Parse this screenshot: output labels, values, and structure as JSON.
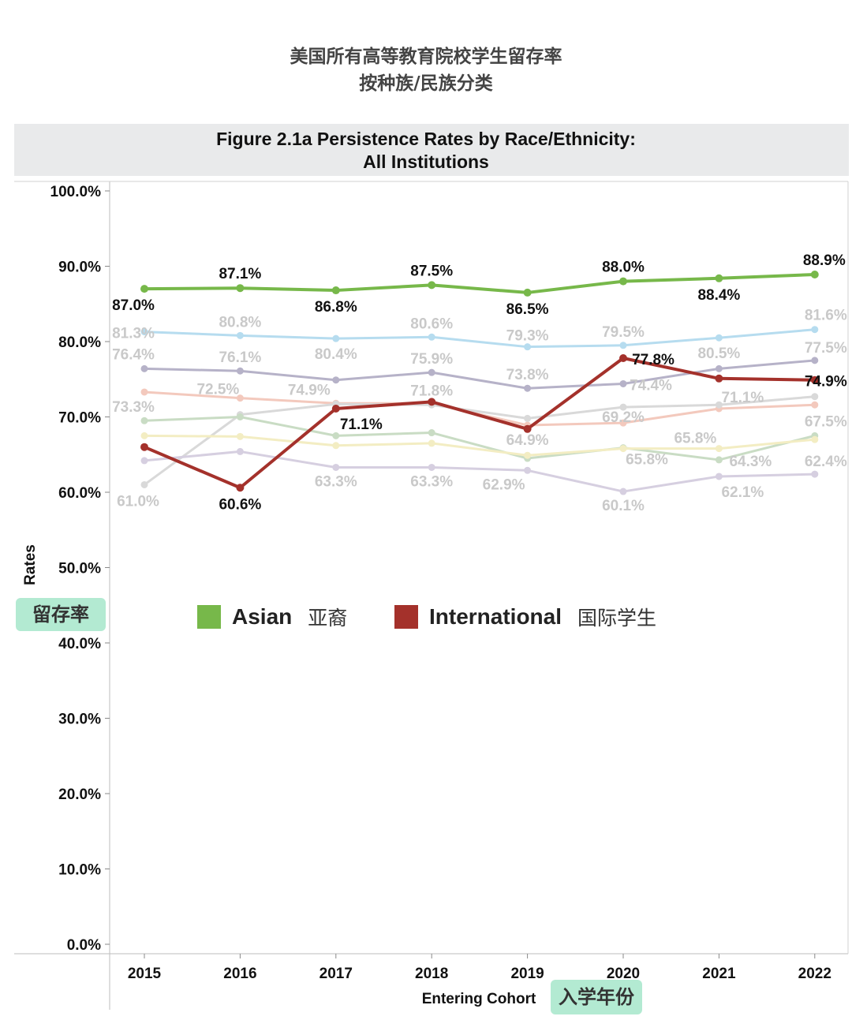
{
  "header": {
    "zh_title_line1": "美国所有高等教育院校学生留存率",
    "zh_title_line2": "按种族/民族分类",
    "figure_title_line1": "Figure 2.1a Persistence Rates by Race/Ethnicity:",
    "figure_title_line2": "All Institutions"
  },
  "annotations": {
    "y_axis_zh": "留存率",
    "x_axis_zh": "入学年份"
  },
  "legend": [
    {
      "label": "Asian",
      "zh": "亚裔",
      "color": "#77b84a"
    },
    {
      "label": "International",
      "zh": "国际学生",
      "color": "#a4312b"
    }
  ],
  "chart_data": {
    "type": "line",
    "title": "Figure 2.1a Persistence Rates by Race/Ethnicity: All Institutions",
    "xlabel": "Entering Cohort",
    "ylabel": "Rates",
    "ylim": [
      0,
      100
    ],
    "y_ticks": [
      "0.0%",
      "10.0%",
      "20.0%",
      "30.0%",
      "40.0%",
      "50.0%",
      "60.0%",
      "70.0%",
      "80.0%",
      "90.0%",
      "100.0%"
    ],
    "categories": [
      "2015",
      "2016",
      "2017",
      "2018",
      "2019",
      "2020",
      "2021",
      "2022"
    ],
    "grid": false,
    "legend_position": "center",
    "series": [
      {
        "name": "Asian",
        "color": "#77b84a",
        "highlight": true,
        "values": [
          87.0,
          87.1,
          86.8,
          87.5,
          86.5,
          88.0,
          88.4,
          88.9
        ],
        "labels": [
          "87.0%",
          "87.1%",
          "86.8%",
          "87.5%",
          "86.5%",
          "88.0%",
          "88.4%",
          "88.9%"
        ]
      },
      {
        "name": "International",
        "color": "#a4312b",
        "highlight": true,
        "values": [
          66.0,
          60.6,
          71.1,
          72.0,
          68.4,
          77.8,
          75.1,
          74.9
        ],
        "labels": [
          "",
          "60.6%",
          "71.1%",
          "",
          "",
          "77.8%",
          "",
          "74.9%"
        ]
      },
      {
        "color": "#b6dcef",
        "highlight": false,
        "values": [
          81.3,
          80.8,
          80.4,
          80.6,
          79.3,
          79.5,
          80.5,
          81.6
        ],
        "labels": [
          "81.3%",
          "80.8%",
          "80.4%",
          "80.6%",
          "79.3%",
          "79.5%",
          "80.5%",
          "81.6%"
        ]
      },
      {
        "color": "#b6b2c8",
        "highlight": false,
        "values": [
          76.4,
          76.1,
          74.9,
          75.9,
          73.8,
          74.4,
          76.4,
          77.5
        ],
        "labels": [
          "76.4%",
          "76.1%",
          "74.9%",
          "75.9%",
          "73.8%",
          "74.4%",
          "",
          "77.5%"
        ]
      },
      {
        "color": "#f3c9bd",
        "highlight": false,
        "values": [
          73.3,
          72.5,
          71.8,
          71.8,
          68.9,
          69.2,
          71.1,
          71.6
        ],
        "labels": [
          "73.3%",
          "72.5%",
          "",
          "71.8%",
          "",
          "69.2%",
          "71.1%",
          ""
        ]
      },
      {
        "color": "#d9d9d9",
        "highlight": false,
        "values": [
          61.0,
          70.3,
          71.7,
          71.6,
          69.8,
          71.3,
          71.6,
          72.7
        ],
        "labels": [
          "61.0%",
          "",
          "",
          "",
          "",
          "",
          "",
          ""
        ]
      },
      {
        "color": "#c9dcc4",
        "highlight": false,
        "values": [
          69.5,
          70.0,
          67.5,
          67.9,
          64.5,
          65.9,
          64.3,
          67.5
        ],
        "labels": [
          "",
          "",
          "",
          "",
          "",
          "",
          "64.3%",
          "67.5%"
        ]
      },
      {
        "color": "#f3edc3",
        "highlight": false,
        "values": [
          67.5,
          67.4,
          66.2,
          66.5,
          64.9,
          65.8,
          65.8,
          67.0
        ],
        "labels": [
          "",
          "",
          "",
          "",
          "64.9%",
          "65.8%",
          "65.8%",
          ""
        ]
      },
      {
        "color": "#d6cfe0",
        "highlight": false,
        "values": [
          64.2,
          65.4,
          63.3,
          63.3,
          62.9,
          60.1,
          62.1,
          62.4
        ],
        "labels": [
          "",
          "",
          "63.3%",
          "63.3%",
          "62.9%",
          "60.1%",
          "62.1%",
          "62.4%"
        ]
      }
    ]
  }
}
